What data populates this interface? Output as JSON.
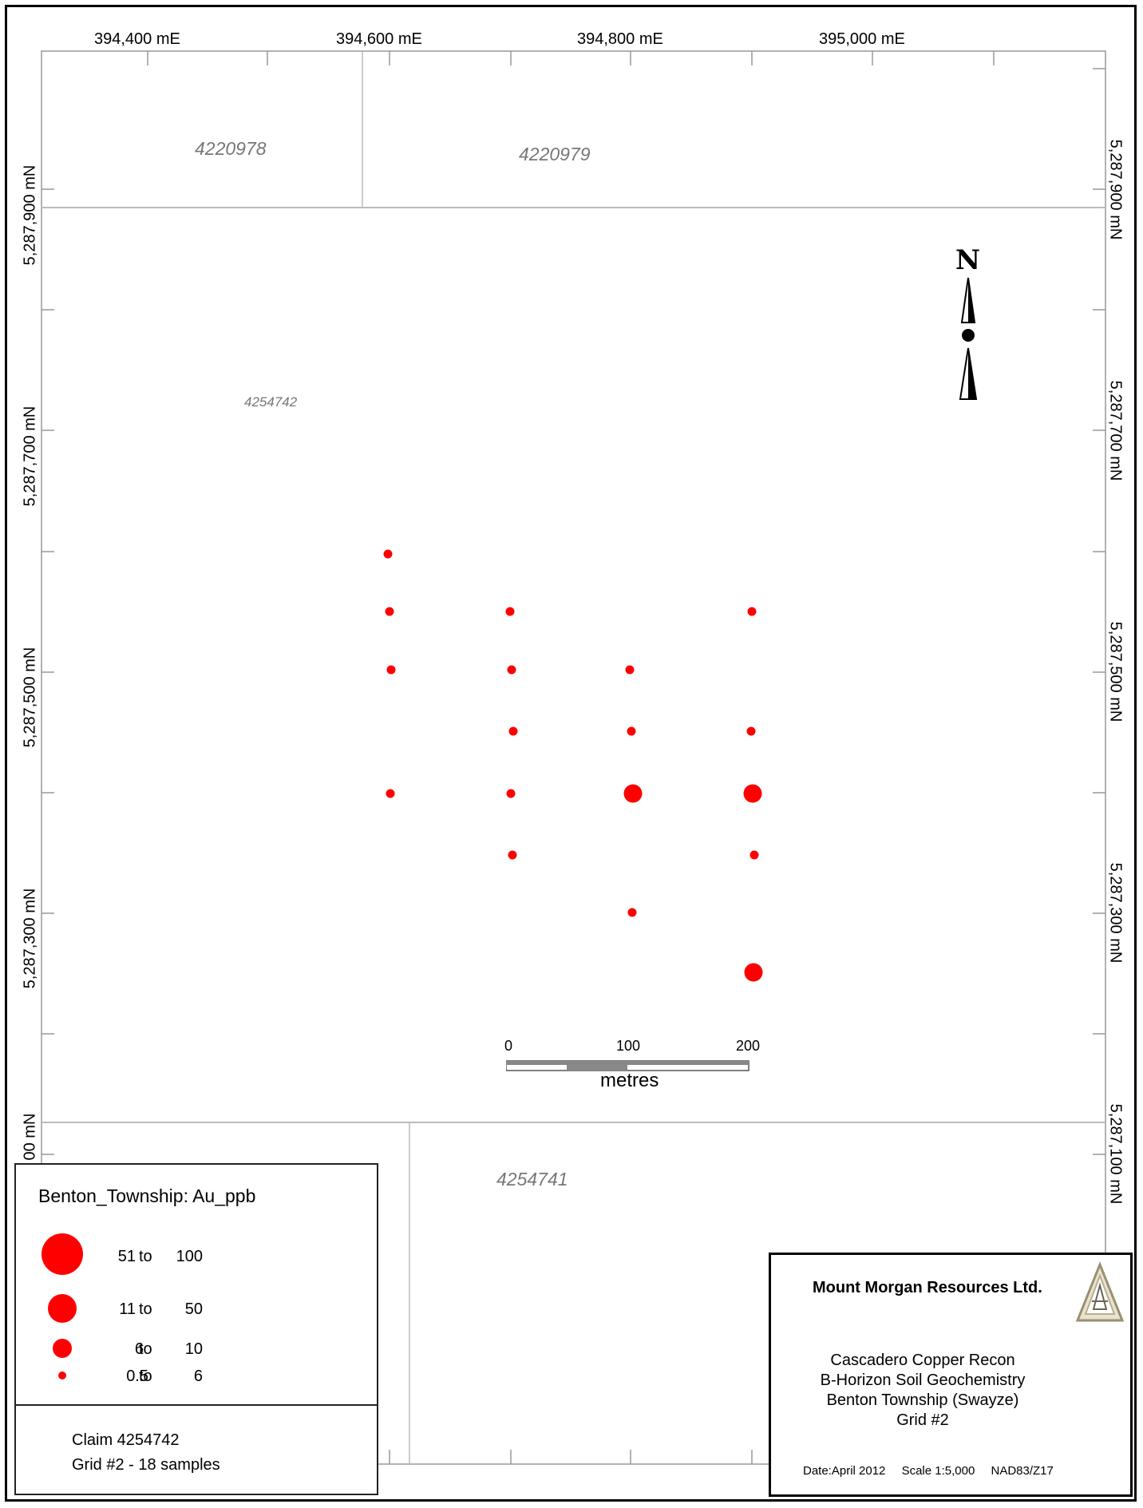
{
  "map": {
    "easting_labels": [
      "394,400 mE",
      "394,600 mE",
      "394,800 mE",
      "395,000 mE"
    ],
    "northing_labels_left": [
      "5,287,900 mN",
      "5,287,700 mN",
      "5,287,500 mN",
      "5,287,300 mN",
      "00 mN"
    ],
    "northing_labels_right": [
      "5,287,900 mN",
      "5,287,700 mN",
      "5,287,500 mN",
      "5,287,300 mN",
      "5,287,100 mN"
    ],
    "claims": {
      "c1": "4220978",
      "c2": "4220979",
      "c3": "4254742",
      "c4": "4254741"
    },
    "north_label": "N",
    "symbol_color": "#ff0000",
    "samples": [
      {
        "row": 1,
        "col": 1,
        "class": "0.5-6"
      },
      {
        "row": 2,
        "col": 1,
        "class": "0.5-6"
      },
      {
        "row": 3,
        "col": 1,
        "class": "0.5-6"
      },
      {
        "row": 5,
        "col": 1,
        "class": "0.5-6"
      },
      {
        "row": 2,
        "col": 2,
        "class": "0.5-6"
      },
      {
        "row": 3,
        "col": 2,
        "class": "0.5-6"
      },
      {
        "row": 4,
        "col": 2,
        "class": "0.5-6"
      },
      {
        "row": 5,
        "col": 2,
        "class": "0.5-6"
      },
      {
        "row": 6,
        "col": 2,
        "class": "0.5-6"
      },
      {
        "row": 3,
        "col": 3,
        "class": "0.5-6"
      },
      {
        "row": 4,
        "col": 3,
        "class": "0.5-6"
      },
      {
        "row": 5,
        "col": 3,
        "class": "6-10"
      },
      {
        "row": 7,
        "col": 3,
        "class": "0.5-6"
      },
      {
        "row": 2,
        "col": 4,
        "class": "0.5-6"
      },
      {
        "row": 4,
        "col": 4,
        "class": "0.5-6"
      },
      {
        "row": 5,
        "col": 4,
        "class": "6-10"
      },
      {
        "row": 6,
        "col": 4,
        "class": "0.5-6"
      },
      {
        "row": 8,
        "col": 4,
        "class": "6-10"
      }
    ]
  },
  "scale_bar": {
    "ticks": [
      "0",
      "100",
      "200"
    ],
    "unit": "metres"
  },
  "legend": {
    "title": "Benton_Township: Au_ppb",
    "classes": [
      {
        "lo": "51",
        "to": "to",
        "hi": "100",
        "size": "xl"
      },
      {
        "lo": "11",
        "to": "to",
        "hi": "50",
        "size": "lg"
      },
      {
        "lo": "6",
        "to": "to",
        "hi": "10",
        "size": "md"
      },
      {
        "lo": "0.5",
        "to": "to",
        "hi": "6",
        "size": "sm"
      }
    ],
    "note_line1": "Claim 4254742",
    "note_line2": "Grid #2 - 18 samples"
  },
  "title_block": {
    "company": "Mount Morgan Resources Ltd.",
    "line1": "Cascadero Copper Recon",
    "line2": "B-Horizon Soil Geochemistry",
    "line3": "Benton Township (Swayze)",
    "line4": "Grid #2",
    "date": "Date:April 2012",
    "scale": "Scale 1:5,000",
    "datum": "NAD83/Z17"
  }
}
